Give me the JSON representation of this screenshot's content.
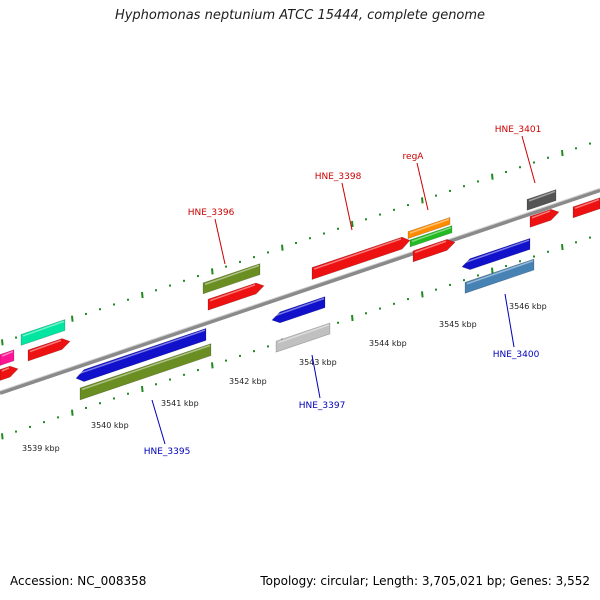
{
  "title": "Hyphomonas neptunium ATCC 15444, complete genome",
  "footer": {
    "accession": "Accession: NC_008358",
    "summary": "Topology: circular; Length: 3,705,021 bp; Genes: 3,552"
  },
  "colors": {
    "background": "#ffffff",
    "backbone": "#8a8a8a",
    "tick_green": "#1f8a1f",
    "label_forward": "#cc0000",
    "label_reverse": "#0000bb",
    "leader_forward": "#cc0000",
    "leader_reverse": "#0000bb",
    "scale_text": "#222222"
  },
  "scale_labels": [
    "3539 kbp",
    "3540 kbp",
    "3541 kbp",
    "3542 kbp",
    "3543 kbp",
    "3544 kbp",
    "3545 kbp",
    "3546 kbp"
  ],
  "gene_labels": {
    "forward": [
      "HNE_3396",
      "HNE_3398",
      "regA",
      "HNE_3401"
    ],
    "reverse": [
      "HNE_3395",
      "HNE_3397",
      "HNE_3400"
    ]
  },
  "feature_colors": {
    "cds_forward": "#ee1111",
    "cds_reverse": "#1111cc",
    "gene_olive": "#6b8e23",
    "orange": "#ff8c00",
    "green": "#22bb22",
    "gray": "#555555",
    "light_gray": "#c0c0c0",
    "steel_blue": "#4682b4",
    "spring_green": "#00e5a0",
    "pink": "#ff1493"
  }
}
